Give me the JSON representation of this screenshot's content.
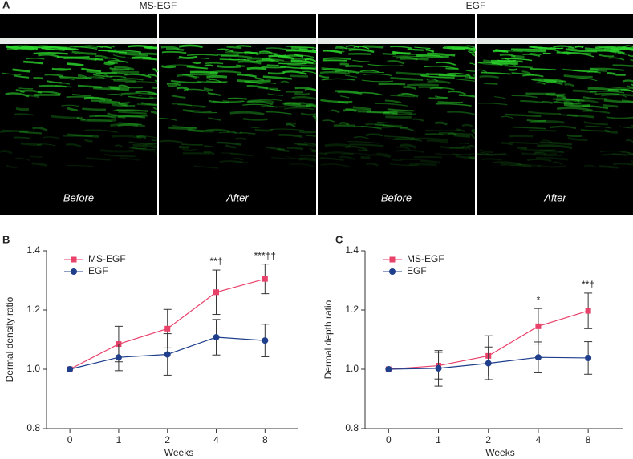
{
  "panel_a": {
    "label": "A",
    "groups": [
      "MS-EGF",
      "EGF"
    ],
    "images": [
      "Before",
      "After",
      "Before",
      "After"
    ]
  },
  "chart_data": [
    {
      "type": "line",
      "panel_label": "B",
      "xlabel": "Weeks",
      "ylabel": "Dermal density ratio",
      "categories": [
        "0",
        "1",
        "2",
        "4",
        "8"
      ],
      "series": [
        {
          "name": "MS-EGF",
          "color": "#e8416a",
          "marker": "square",
          "values": [
            1.0,
            1.085,
            1.137,
            1.26,
            1.305
          ],
          "errors": [
            0,
            0.06,
            0.065,
            0.075,
            0.05
          ]
        },
        {
          "name": "EGF",
          "color": "#1f3e8c",
          "marker": "circle",
          "values": [
            1.0,
            1.04,
            1.05,
            1.108,
            1.097
          ],
          "errors": [
            0,
            0.045,
            0.07,
            0.06,
            0.055
          ]
        }
      ],
      "annotations": [
        null,
        null,
        null,
        "**†",
        "***††"
      ],
      "ylim": [
        0.8,
        1.4
      ],
      "yticks": [
        0.8,
        {
          "value": 1,
          "label": "1.0"
        },
        1.2,
        1.4
      ],
      "legend": "upper left"
    },
    {
      "type": "line",
      "panel_label": "C",
      "xlabel": "Weeks",
      "ylabel": "Dermal depth ratio",
      "categories": [
        "0",
        "1",
        "2",
        "4",
        "8"
      ],
      "series": [
        {
          "name": "MS-EGF",
          "color": "#e8416a",
          "marker": "square",
          "values": [
            1.0,
            1.012,
            1.045,
            1.145,
            1.197
          ],
          "errors": [
            0,
            0.045,
            0.068,
            0.06,
            0.06
          ]
        },
        {
          "name": "EGF",
          "color": "#1f3e8c",
          "marker": "circle",
          "values": [
            1.0,
            1.003,
            1.02,
            1.04,
            1.038
          ],
          "errors": [
            0,
            0.06,
            0.055,
            0.052,
            0.055
          ]
        }
      ],
      "annotations": [
        null,
        null,
        null,
        "*",
        "**†"
      ],
      "ylim": [
        0.8,
        1.4
      ],
      "yticks": [
        0.8,
        {
          "value": 1,
          "label": "1.0"
        },
        1.2,
        1.4
      ],
      "legend": "upper left"
    }
  ]
}
